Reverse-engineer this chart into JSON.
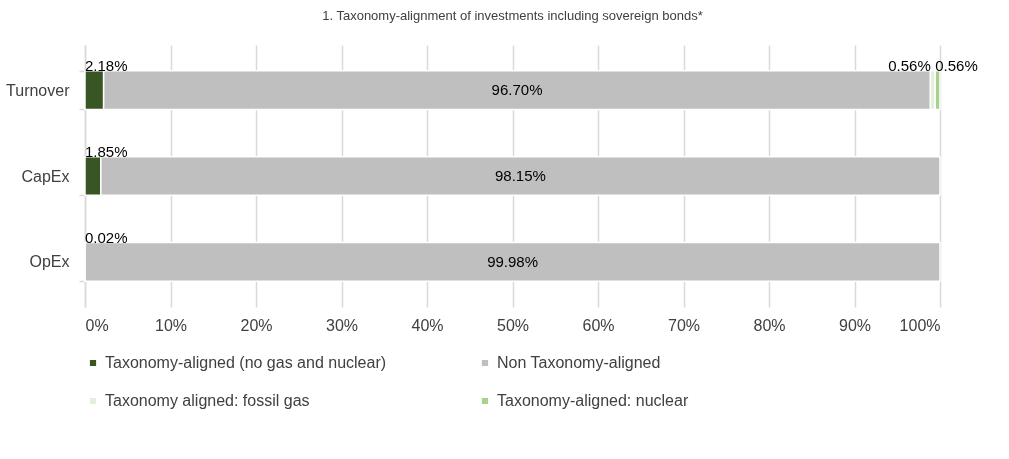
{
  "chart_data": {
    "type": "bar",
    "orientation": "horizontal",
    "stacked": true,
    "title": "1. Taxonomy-alignment of investments including sovereign bonds*",
    "categories": [
      "Turnover",
      "CapEx",
      "OpEx"
    ],
    "series": [
      {
        "name": "Taxonomy-aligned (no gas and nuclear)",
        "color": "#375623",
        "values": [
          2.18,
          1.85,
          0.02
        ],
        "value_labels": [
          "2.18%",
          "1.85%",
          "0.02%"
        ]
      },
      {
        "name": "Non Taxonomy-aligned",
        "color": "#bfbfbf",
        "values": [
          96.7,
          98.15,
          99.98
        ],
        "value_labels": [
          "96.70%",
          "98.15%",
          "99.98%"
        ]
      },
      {
        "name": "Taxonomy aligned: fossil gas",
        "color": "#e2efda",
        "values": [
          0.56,
          null,
          null
        ],
        "value_labels": [
          "0.56%",
          null,
          null
        ]
      },
      {
        "name": "Taxonomy-aligned: nuclear",
        "color": "#a9d08e",
        "values": [
          0.56,
          null,
          null
        ],
        "value_labels": [
          "0.56%",
          null,
          null
        ]
      }
    ],
    "xlim": [
      0,
      100
    ],
    "xticks": [
      {
        "value": 0,
        "label": "0%"
      },
      {
        "value": 10,
        "label": "10%"
      },
      {
        "value": 20,
        "label": "20%"
      },
      {
        "value": 30,
        "label": "30%"
      },
      {
        "value": 40,
        "label": "40%"
      },
      {
        "value": 50,
        "label": "50%"
      },
      {
        "value": 60,
        "label": "60%"
      },
      {
        "value": 70,
        "label": "70%"
      },
      {
        "value": 80,
        "label": "80%"
      },
      {
        "value": 90,
        "label": "90%"
      },
      {
        "value": 100,
        "label": "100%"
      }
    ],
    "grid": "x",
    "legend": "bottom"
  }
}
